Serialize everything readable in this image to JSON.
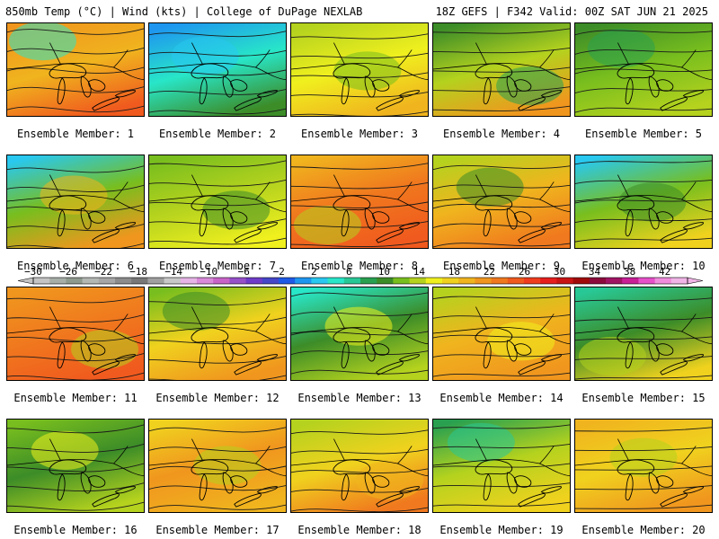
{
  "header": {
    "left": "850mb Temp (°C) | Wind (kts) | College of DuPage NEXLAB",
    "right": "18Z GEFS | F342 Valid: 00Z SAT JUN 21 2025"
  },
  "colorbar": {
    "labels": [
      "−30",
      "−26",
      "−22",
      "−18",
      "−14",
      "−10",
      "−6",
      "−2",
      "2",
      "6",
      "10",
      "14",
      "18",
      "22",
      "26",
      "30",
      "34",
      "38",
      "42"
    ],
    "colors": [
      "#c4c4c4",
      "#a7aea7",
      "#8e9a8e",
      "#b4b8b4",
      "#a6a6a6",
      "#8c8c8c",
      "#787878",
      "#a0a0a0",
      "#c8c8c8",
      "#e6b4e6",
      "#d98ad9",
      "#c864c8",
      "#9650c8",
      "#6e3cc8",
      "#4646c8",
      "#1e5ae6",
      "#1e96f0",
      "#28c8f0",
      "#28e6c8",
      "#28c896",
      "#28a050",
      "#3c8c28",
      "#78be1e",
      "#b4d21e",
      "#f0f01e",
      "#f0d21e",
      "#f0b41e",
      "#f0961e",
      "#f0781e",
      "#f05a1e",
      "#f03c1e",
      "#e61e1e",
      "#c81414",
      "#a00a0a",
      "#8c0a3c",
      "#a01464",
      "#c81e96",
      "#e650c8",
      "#f08cdc",
      "#f0b4e6"
    ],
    "tick_values": [
      -30,
      -26,
      -22,
      -18,
      -14,
      -10,
      -6,
      -2,
      2,
      6,
      10,
      14,
      18,
      22,
      26,
      30,
      34,
      38,
      42
    ]
  },
  "panels": [
    {
      "label": "Ensemble Member: 1",
      "top": "#f0961e",
      "mid": "#f0b41e",
      "bot": "#f05a1e",
      "accent": "#28e6c8"
    },
    {
      "label": "Ensemble Member: 2",
      "top": "#1e96f0",
      "mid": "#28e6c8",
      "bot": "#3c8c28",
      "accent": "#28c8f0"
    },
    {
      "label": "Ensemble Member: 3",
      "top": "#b4d21e",
      "mid": "#f0f01e",
      "bot": "#f0b41e",
      "accent": "#78be1e"
    },
    {
      "label": "Ensemble Member: 4",
      "top": "#3c8c28",
      "mid": "#b4d21e",
      "bot": "#f0961e",
      "accent": "#28a050"
    },
    {
      "label": "Ensemble Member: 5",
      "top": "#3c8c28",
      "mid": "#78be1e",
      "bot": "#b4d21e",
      "accent": "#28a050"
    },
    {
      "label": "Ensemble Member: 6",
      "top": "#28c8f0",
      "mid": "#78be1e",
      "bot": "#f0961e",
      "accent": "#f0b41e"
    },
    {
      "label": "Ensemble Member: 7",
      "top": "#78be1e",
      "mid": "#b4d21e",
      "bot": "#f0f01e",
      "accent": "#3c8c28"
    },
    {
      "label": "Ensemble Member: 8",
      "top": "#f0b41e",
      "mid": "#f0781e",
      "bot": "#f05a1e",
      "accent": "#b4d21e"
    },
    {
      "label": "Ensemble Member: 9",
      "top": "#b4d21e",
      "mid": "#f0b41e",
      "bot": "#f0781e",
      "accent": "#3c8c28"
    },
    {
      "label": "Ensemble Member: 10",
      "top": "#28c8f0",
      "mid": "#78be1e",
      "bot": "#f0d21e",
      "accent": "#3c8c28"
    },
    {
      "label": "Ensemble Member: 11",
      "top": "#f0961e",
      "mid": "#f0781e",
      "bot": "#f05a1e",
      "accent": "#b4d21e"
    },
    {
      "label": "Ensemble Member: 12",
      "top": "#78be1e",
      "mid": "#f0d21e",
      "bot": "#f0961e",
      "accent": "#3c8c28"
    },
    {
      "label": "Ensemble Member: 13",
      "top": "#28e6c8",
      "mid": "#3c8c28",
      "bot": "#b4d21e",
      "accent": "#f0f01e"
    },
    {
      "label": "Ensemble Member: 14",
      "top": "#b4d21e",
      "mid": "#f0b41e",
      "bot": "#f0961e",
      "accent": "#f0f01e"
    },
    {
      "label": "Ensemble Member: 15",
      "top": "#28c896",
      "mid": "#3c8c28",
      "bot": "#f0d21e",
      "accent": "#b4d21e"
    },
    {
      "label": "Ensemble Member: 16",
      "top": "#78be1e",
      "mid": "#3c8c28",
      "bot": "#b4d21e",
      "accent": "#f0f01e"
    },
    {
      "label": "Ensemble Member: 17",
      "top": "#f0d21e",
      "mid": "#f0961e",
      "bot": "#f0b41e",
      "accent": "#b4d21e"
    },
    {
      "label": "Ensemble Member: 18",
      "top": "#b4d21e",
      "mid": "#f0d21e",
      "bot": "#f0781e",
      "accent": "#f0b41e"
    },
    {
      "label": "Ensemble Member: 19",
      "top": "#28a050",
      "mid": "#b4d21e",
      "bot": "#f0d21e",
      "accent": "#28c896"
    },
    {
      "label": "Ensemble Member: 20",
      "top": "#f0b41e",
      "mid": "#f0d21e",
      "bot": "#f0961e",
      "accent": "#b4d21e"
    }
  ]
}
